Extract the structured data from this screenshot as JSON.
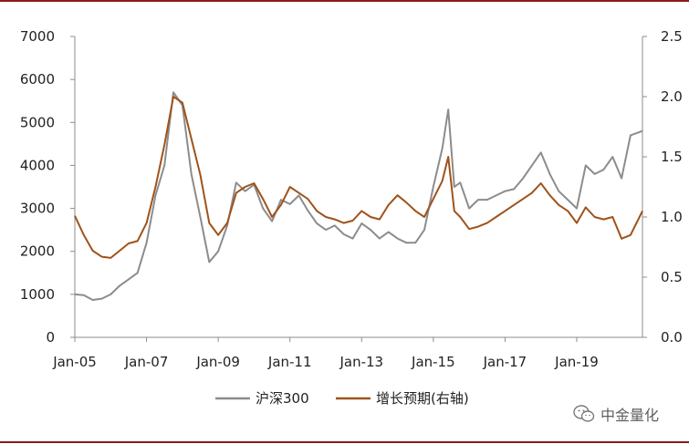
{
  "chart_data": {
    "type": "line",
    "title": "",
    "xlabel": "",
    "ylabel": "",
    "x_ticks": [
      "Jan-05",
      "Jan-07",
      "Jan-09",
      "Jan-11",
      "Jan-13",
      "Jan-15",
      "Jan-17",
      "Jan-19"
    ],
    "y_left": {
      "ticks": [
        "0",
        "1000",
        "2000",
        "3000",
        "4000",
        "5000",
        "6000",
        "7000"
      ],
      "lim": [
        0,
        7000
      ]
    },
    "y_right": {
      "ticks": [
        "0.0",
        "0.5",
        "1.0",
        "1.5",
        "2.0",
        "2.5"
      ],
      "lim": [
        0,
        2.5
      ]
    },
    "x_range": [
      "2005-01",
      "2020-11"
    ],
    "legend_position": "bottom",
    "grid": false,
    "series": [
      {
        "name": "沪深300",
        "axis": "left",
        "color": "#8c8c8c",
        "points": [
          [
            "2005-01",
            1000
          ],
          [
            "2005-04",
            980
          ],
          [
            "2005-07",
            870
          ],
          [
            "2005-10",
            900
          ],
          [
            "2006-01",
            1000
          ],
          [
            "2006-04",
            1200
          ],
          [
            "2006-07",
            1350
          ],
          [
            "2006-10",
            1500
          ],
          [
            "2007-01",
            2200
          ],
          [
            "2007-04",
            3300
          ],
          [
            "2007-07",
            4000
          ],
          [
            "2007-10",
            5700
          ],
          [
            "2008-01",
            5400
          ],
          [
            "2008-04",
            3800
          ],
          [
            "2008-07",
            2800
          ],
          [
            "2008-10",
            1750
          ],
          [
            "2009-01",
            2000
          ],
          [
            "2009-04",
            2600
          ],
          [
            "2009-07",
            3600
          ],
          [
            "2009-10",
            3400
          ],
          [
            "2010-01",
            3550
          ],
          [
            "2010-04",
            3000
          ],
          [
            "2010-07",
            2700
          ],
          [
            "2010-10",
            3200
          ],
          [
            "2011-01",
            3100
          ],
          [
            "2011-04",
            3300
          ],
          [
            "2011-07",
            2950
          ],
          [
            "2011-10",
            2650
          ],
          [
            "2012-01",
            2500
          ],
          [
            "2012-04",
            2600
          ],
          [
            "2012-07",
            2400
          ],
          [
            "2012-10",
            2300
          ],
          [
            "2013-01",
            2650
          ],
          [
            "2013-04",
            2500
          ],
          [
            "2013-07",
            2300
          ],
          [
            "2013-10",
            2450
          ],
          [
            "2014-01",
            2300
          ],
          [
            "2014-04",
            2200
          ],
          [
            "2014-07",
            2200
          ],
          [
            "2014-10",
            2500
          ],
          [
            "2015-01",
            3500
          ],
          [
            "2015-04",
            4400
          ],
          [
            "2015-06",
            5300
          ],
          [
            "2015-08",
            3500
          ],
          [
            "2015-10",
            3600
          ],
          [
            "2016-01",
            3000
          ],
          [
            "2016-04",
            3200
          ],
          [
            "2016-07",
            3200
          ],
          [
            "2016-10",
            3300
          ],
          [
            "2017-01",
            3400
          ],
          [
            "2017-04",
            3450
          ],
          [
            "2017-07",
            3700
          ],
          [
            "2017-10",
            4000
          ],
          [
            "2018-01",
            4300
          ],
          [
            "2018-04",
            3800
          ],
          [
            "2018-07",
            3400
          ],
          [
            "2018-10",
            3200
          ],
          [
            "2019-01",
            3000
          ],
          [
            "2019-04",
            4000
          ],
          [
            "2019-07",
            3800
          ],
          [
            "2019-10",
            3900
          ],
          [
            "2020-01",
            4200
          ],
          [
            "2020-04",
            3700
          ],
          [
            "2020-07",
            4700
          ],
          [
            "2020-11",
            4800
          ]
        ]
      },
      {
        "name": "增长预期(右轴)",
        "axis": "right",
        "color": "#a0521a",
        "points": [
          [
            "2005-01",
            1.01
          ],
          [
            "2005-04",
            0.85
          ],
          [
            "2005-07",
            0.72
          ],
          [
            "2005-10",
            0.67
          ],
          [
            "2006-01",
            0.66
          ],
          [
            "2006-04",
            0.72
          ],
          [
            "2006-07",
            0.78
          ],
          [
            "2006-10",
            0.8
          ],
          [
            "2007-01",
            0.95
          ],
          [
            "2007-04",
            1.25
          ],
          [
            "2007-07",
            1.6
          ],
          [
            "2007-10",
            2.0
          ],
          [
            "2008-01",
            1.95
          ],
          [
            "2008-04",
            1.65
          ],
          [
            "2008-07",
            1.35
          ],
          [
            "2008-10",
            0.95
          ],
          [
            "2009-01",
            0.85
          ],
          [
            "2009-04",
            0.95
          ],
          [
            "2009-07",
            1.2
          ],
          [
            "2009-10",
            1.25
          ],
          [
            "2010-01",
            1.28
          ],
          [
            "2010-04",
            1.15
          ],
          [
            "2010-07",
            1.0
          ],
          [
            "2010-10",
            1.1
          ],
          [
            "2011-01",
            1.25
          ],
          [
            "2011-04",
            1.2
          ],
          [
            "2011-07",
            1.15
          ],
          [
            "2011-10",
            1.05
          ],
          [
            "2012-01",
            1.0
          ],
          [
            "2012-04",
            0.98
          ],
          [
            "2012-07",
            0.95
          ],
          [
            "2012-10",
            0.97
          ],
          [
            "2013-01",
            1.05
          ],
          [
            "2013-04",
            1.0
          ],
          [
            "2013-07",
            0.98
          ],
          [
            "2013-10",
            1.1
          ],
          [
            "2014-01",
            1.18
          ],
          [
            "2014-04",
            1.12
          ],
          [
            "2014-07",
            1.05
          ],
          [
            "2014-10",
            1.0
          ],
          [
            "2015-01",
            1.15
          ],
          [
            "2015-04",
            1.3
          ],
          [
            "2015-06",
            1.5
          ],
          [
            "2015-08",
            1.05
          ],
          [
            "2015-10",
            1.0
          ],
          [
            "2016-01",
            0.9
          ],
          [
            "2016-04",
            0.92
          ],
          [
            "2016-07",
            0.95
          ],
          [
            "2016-10",
            1.0
          ],
          [
            "2017-01",
            1.05
          ],
          [
            "2017-04",
            1.1
          ],
          [
            "2017-07",
            1.15
          ],
          [
            "2017-10",
            1.2
          ],
          [
            "2018-01",
            1.28
          ],
          [
            "2018-04",
            1.18
          ],
          [
            "2018-07",
            1.1
          ],
          [
            "2018-10",
            1.05
          ],
          [
            "2019-01",
            0.95
          ],
          [
            "2019-04",
            1.08
          ],
          [
            "2019-07",
            1.0
          ],
          [
            "2019-10",
            0.98
          ],
          [
            "2020-01",
            1.0
          ],
          [
            "2020-04",
            0.82
          ],
          [
            "2020-07",
            0.85
          ],
          [
            "2020-11",
            1.05
          ]
        ]
      }
    ]
  },
  "watermark": {
    "text": "中金量化",
    "icon": "wechat-icon"
  },
  "colors": {
    "rule": "#8a1c1c",
    "axis": "#8c8c8c"
  }
}
